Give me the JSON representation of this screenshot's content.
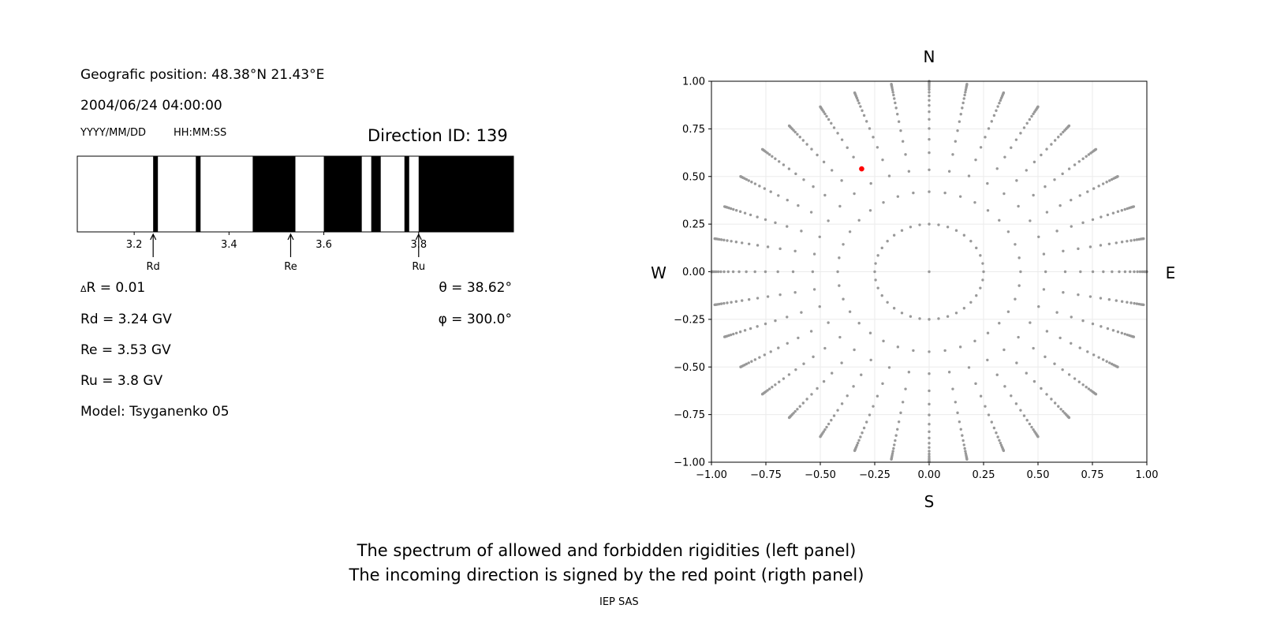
{
  "left_panel": {
    "position": "Geografic position: 48.38°N 21.43°E",
    "datetime": "2004/06/24 04:00:00",
    "date_format": "YYYY/MM/DD",
    "time_format": "HH:MM:SS",
    "direction_id": "Direction ID: 139",
    "delta_r": "R = 0.01",
    "delta_symbol": "Δ",
    "rd": "Rd = 3.24 GV",
    "re": "Re = 3.53 GV",
    "ru": "Ru = 3.8 GV",
    "model": "Model: Tsyganenko 05",
    "theta": "θ = 38.62°",
    "phi": "φ = 300.0°"
  },
  "caption": {
    "line1": "The spectrum of allowed and forbidden rigidities (left panel)",
    "line2": "The incoming direction is signed by the red point (rigth panel)",
    "credit": "IEP SAS"
  },
  "chart_data": [
    {
      "type": "bar",
      "description_kind": "rigidity spectrum (white = allowed, black = forbidden)",
      "xlim": [
        3.08,
        4.0
      ],
      "xticks": [
        "3.2",
        "3.4",
        "3.6",
        "3.8"
      ],
      "xtick_values": [
        3.2,
        3.4,
        3.6,
        3.8
      ],
      "forbidden_bands": [
        [
          3.24,
          3.25
        ],
        [
          3.33,
          3.34
        ],
        [
          3.45,
          3.54
        ],
        [
          3.6,
          3.68
        ],
        [
          3.7,
          3.72
        ],
        [
          3.77,
          3.78
        ],
        [
          3.8,
          4.0
        ]
      ],
      "markers": [
        {
          "label": "Rd",
          "value": 3.24
        },
        {
          "label": "Re",
          "value": 3.53
        },
        {
          "label": "Ru",
          "value": 3.8
        }
      ],
      "colors": {
        "allowed": "#ffffff",
        "forbidden": "#000000"
      }
    },
    {
      "type": "scatter",
      "xlim": [
        -1.0,
        1.0
      ],
      "ylim": [
        -1.0,
        1.0
      ],
      "grid": true,
      "ticks": [
        "-1.00",
        "-0.75",
        "-0.50",
        "-0.25",
        "0.00",
        "0.25",
        "0.50",
        "0.75",
        "1.00"
      ],
      "tick_values": [
        -1,
        -0.75,
        -0.5,
        -0.25,
        0,
        0.25,
        0.5,
        0.75,
        1
      ],
      "compass": {
        "north": "N",
        "south": "S",
        "west": "W",
        "east": "E"
      },
      "grid_directions": {
        "azimuth_step_deg": 10,
        "radii": [
          0.25,
          0.42,
          0.535,
          0.625,
          0.695,
          0.752,
          0.8,
          0.84,
          0.873,
          0.9,
          0.923,
          0.942,
          0.957,
          0.969,
          0.979,
          0.987,
          0.993,
          0.997,
          1.0
        ],
        "center_point": [
          0,
          0
        ],
        "color": "#999999"
      },
      "incoming_direction": {
        "x": -0.31,
        "y": 0.54,
        "color": "#ff0000"
      }
    }
  ]
}
